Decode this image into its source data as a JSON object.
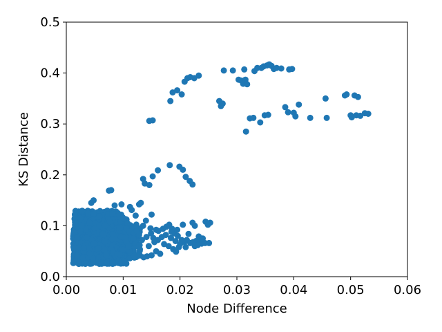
{
  "chart_data": {
    "type": "scatter",
    "xlabel": "Node Difference",
    "ylabel": "KS Distance",
    "xlim": [
      0,
      0.06
    ],
    "ylim": [
      0,
      0.5
    ],
    "x_ticks": [
      "0.00",
      "0.01",
      "0.02",
      "0.03",
      "0.04",
      "0.05",
      "0.06"
    ],
    "y_ticks": [
      "0.0",
      "0.1",
      "0.2",
      "0.3",
      "0.4",
      "0.5"
    ],
    "x_tick_values": [
      0,
      0.01,
      0.02,
      0.03,
      0.04,
      0.05,
      0.06
    ],
    "y_tick_values": [
      0,
      0.1,
      0.2,
      0.3,
      0.4,
      0.5
    ],
    "grid": false,
    "legend": "none",
    "marker_color": "#1f77b4",
    "series": [
      {
        "points": [
          [
            0.0146,
            0.306
          ],
          [
            0.0152,
            0.307
          ],
          [
            0.0183,
            0.345
          ],
          [
            0.0187,
            0.362
          ],
          [
            0.0195,
            0.366
          ],
          [
            0.0203,
            0.358
          ],
          [
            0.0208,
            0.383
          ],
          [
            0.0213,
            0.39
          ],
          [
            0.0218,
            0.392
          ],
          [
            0.0225,
            0.39
          ],
          [
            0.0233,
            0.395
          ],
          [
            0.0269,
            0.345
          ],
          [
            0.0272,
            0.335
          ],
          [
            0.0275,
            0.34
          ],
          [
            0.0277,
            0.405
          ],
          [
            0.0293,
            0.405
          ],
          [
            0.0303,
            0.387
          ],
          [
            0.0308,
            0.385
          ],
          [
            0.0311,
            0.379
          ],
          [
            0.0313,
            0.407
          ],
          [
            0.0315,
            0.387
          ],
          [
            0.0318,
            0.378
          ],
          [
            0.0323,
            0.311
          ],
          [
            0.0316,
            0.285
          ],
          [
            0.0329,
            0.312
          ],
          [
            0.0331,
            0.404
          ],
          [
            0.0336,
            0.41
          ],
          [
            0.0341,
            0.303
          ],
          [
            0.0343,
            0.41
          ],
          [
            0.0347,
            0.413
          ],
          [
            0.0349,
            0.317
          ],
          [
            0.0353,
            0.415
          ],
          [
            0.0355,
            0.318
          ],
          [
            0.0357,
            0.417
          ],
          [
            0.0361,
            0.414
          ],
          [
            0.0365,
            0.408
          ],
          [
            0.037,
            0.41
          ],
          [
            0.0378,
            0.409
          ],
          [
            0.0385,
            0.333
          ],
          [
            0.039,
            0.323
          ],
          [
            0.0392,
            0.407
          ],
          [
            0.0397,
            0.408
          ],
          [
            0.04,
            0.322
          ],
          [
            0.0403,
            0.315
          ],
          [
            0.0409,
            0.338
          ],
          [
            0.0429,
            0.312
          ],
          [
            0.0456,
            0.35
          ],
          [
            0.0458,
            0.312
          ],
          [
            0.049,
            0.356
          ],
          [
            0.0493,
            0.358
          ],
          [
            0.05,
            0.317
          ],
          [
            0.0502,
            0.313
          ],
          [
            0.0507,
            0.356
          ],
          [
            0.051,
            0.317
          ],
          [
            0.0513,
            0.353
          ],
          [
            0.0517,
            0.316
          ],
          [
            0.0525,
            0.321
          ],
          [
            0.0531,
            0.32
          ],
          [
            0.0135,
            0.192
          ],
          [
            0.0138,
            0.183
          ],
          [
            0.0146,
            0.18
          ],
          [
            0.0152,
            0.197
          ],
          [
            0.0161,
            0.209
          ],
          [
            0.0182,
            0.219
          ],
          [
            0.0199,
            0.216
          ],
          [
            0.0205,
            0.21
          ],
          [
            0.021,
            0.196
          ],
          [
            0.0217,
            0.188
          ],
          [
            0.0222,
            0.181
          ],
          [
            0.0075,
            0.169
          ],
          [
            0.0079,
            0.17
          ],
          [
            0.0048,
            0.15
          ],
          [
            0.0044,
            0.145
          ],
          [
            0.0085,
            0.14
          ],
          [
            0.0097,
            0.142
          ],
          [
            0.0112,
            0.137
          ],
          [
            0.0128,
            0.142
          ],
          [
            0.0131,
            0.145
          ],
          [
            0.0115,
            0.131
          ],
          [
            0.015,
            0.122
          ],
          [
            0.0122,
            0.12
          ],
          [
            0.0135,
            0.1
          ],
          [
            0.014,
            0.11
          ],
          [
            0.0148,
            0.095
          ],
          [
            0.0158,
            0.092
          ],
          [
            0.0162,
            0.09
          ],
          [
            0.017,
            0.094
          ],
          [
            0.0176,
            0.098
          ],
          [
            0.0181,
            0.102
          ],
          [
            0.0185,
            0.088
          ],
          [
            0.019,
            0.085
          ],
          [
            0.0196,
            0.08
          ],
          [
            0.0203,
            0.072
          ],
          [
            0.0208,
            0.068
          ],
          [
            0.0212,
            0.072
          ],
          [
            0.0218,
            0.066
          ],
          [
            0.0223,
            0.068
          ],
          [
            0.0228,
            0.07
          ],
          [
            0.0233,
            0.068
          ],
          [
            0.0238,
            0.065
          ],
          [
            0.0244,
            0.066
          ],
          [
            0.0251,
            0.066
          ],
          [
            0.0245,
            0.108
          ],
          [
            0.0249,
            0.102
          ],
          [
            0.0253,
            0.106
          ],
          [
            0.0222,
            0.106
          ],
          [
            0.0226,
            0.1
          ],
          [
            0.0205,
            0.102
          ],
          [
            0.0198,
            0.058
          ],
          [
            0.0193,
            0.049
          ],
          [
            0.0188,
            0.054
          ],
          [
            0.018,
            0.06
          ],
          [
            0.0172,
            0.064
          ],
          [
            0.0165,
            0.045
          ],
          [
            0.0158,
            0.05
          ],
          [
            0.015,
            0.042
          ],
          [
            0.0142,
            0.04
          ],
          [
            0.0136,
            0.038
          ],
          [
            0.0145,
            0.06
          ],
          [
            0.0155,
            0.068
          ],
          [
            0.0168,
            0.078
          ],
          [
            0.0175,
            0.082
          ],
          [
            0.0184,
            0.076
          ],
          [
            0.0192,
            0.07
          ],
          [
            0.02,
            0.064
          ],
          [
            0.021,
            0.058
          ],
          [
            0.0186,
            0.094
          ],
          [
            0.0195,
            0.092
          ],
          [
            0.0215,
            0.084
          ],
          [
            0.0233,
            0.079
          ],
          [
            0.024,
            0.075
          ],
          [
            0.0129,
            0.062
          ],
          [
            0.0133,
            0.072
          ],
          [
            0.0141,
            0.078
          ],
          [
            0.0149,
            0.085
          ],
          [
            0.0153,
            0.076
          ],
          [
            0.0161,
            0.072
          ],
          [
            0.0226,
            0.06
          ],
          [
            0.0231,
            0.062
          ],
          [
            0.0106,
            0.095
          ],
          [
            0.0111,
            0.088
          ],
          [
            0.0119,
            0.085
          ],
          [
            0.0124,
            0.09
          ],
          [
            0.0128,
            0.082
          ],
          [
            0.0118,
            0.075
          ]
        ]
      }
    ]
  }
}
